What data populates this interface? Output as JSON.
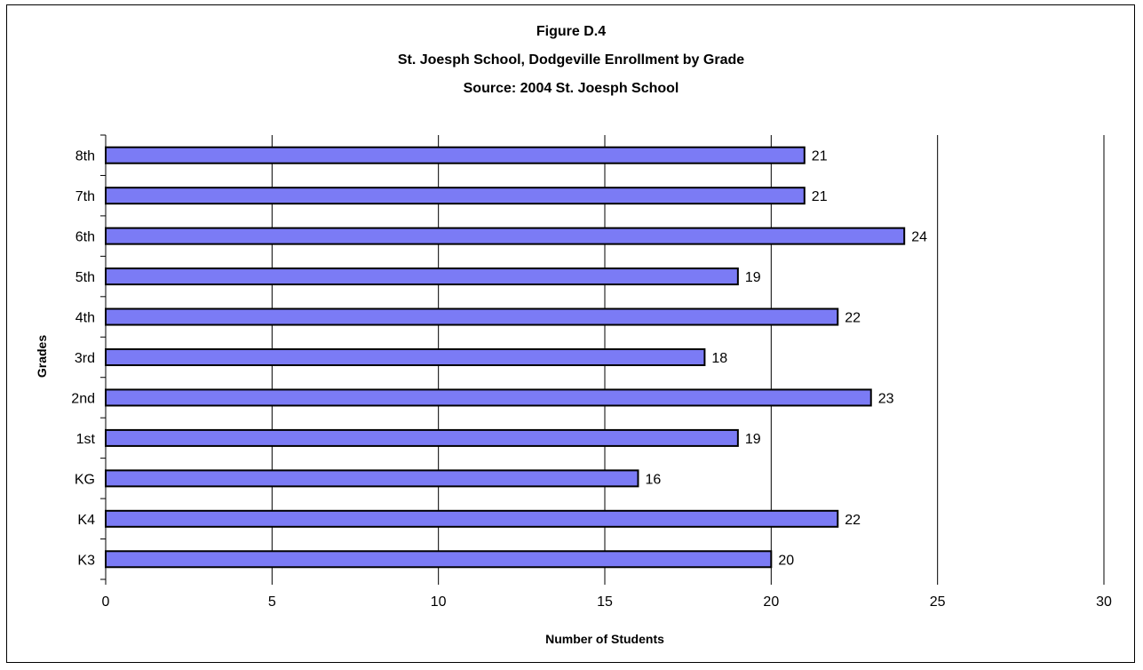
{
  "chart_data": {
    "type": "bar",
    "orientation": "horizontal",
    "title": [
      "Figure D.4",
      "St. Joesph School, Dodgeville Enrollment by Grade",
      "Source:  2004 St. Joesph School"
    ],
    "xlabel": "Number of Students",
    "ylabel": "Grades",
    "categories": [
      "K3",
      "K4",
      "KG",
      "1st",
      "2nd",
      "3rd",
      "4th",
      "5th",
      "6th",
      "7th",
      "8th"
    ],
    "values": [
      20,
      22,
      16,
      19,
      23,
      18,
      22,
      19,
      24,
      21,
      21
    ],
    "xlim": [
      0,
      30
    ],
    "xticks": [
      0,
      5,
      10,
      15,
      20,
      25,
      30
    ],
    "grid": true,
    "legend": "none",
    "data_labels": true,
    "colors": {
      "bar_fill": "#7b7bf5",
      "bar_stroke": "#000000",
      "grid": "#000000",
      "axis": "#000000"
    }
  }
}
